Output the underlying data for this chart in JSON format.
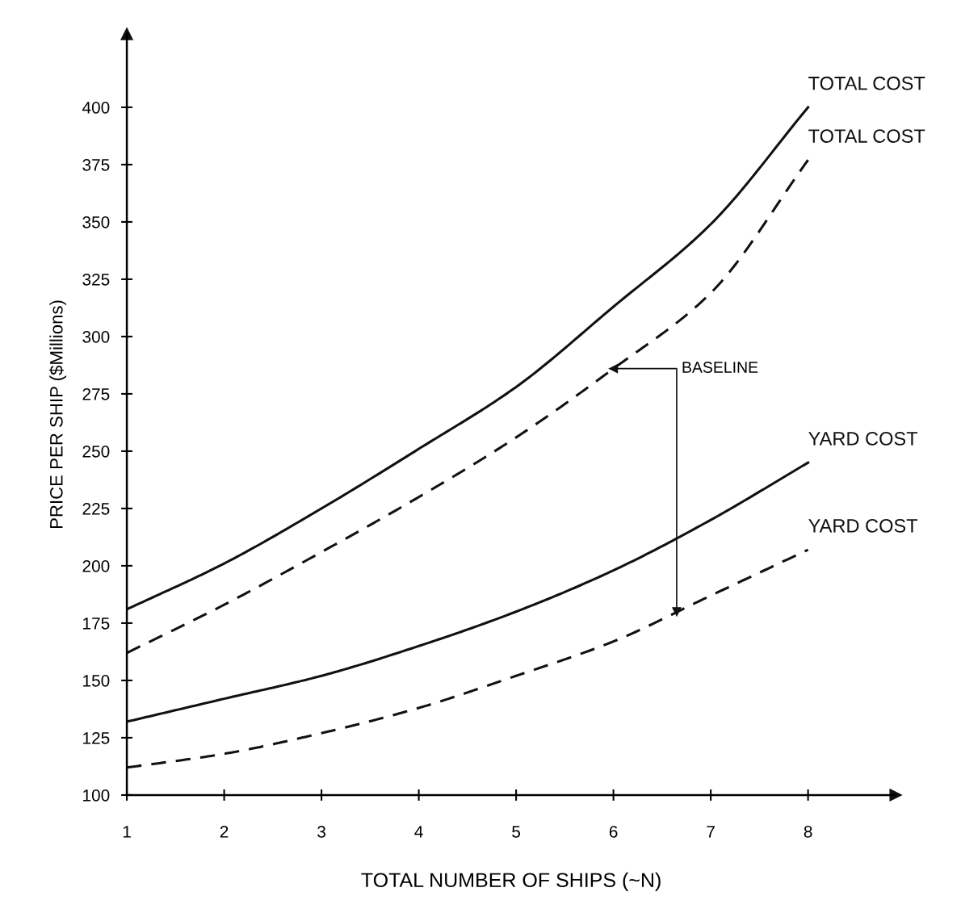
{
  "chart_data": {
    "type": "line",
    "xlabel": "TOTAL NUMBER OF SHIPS (~N)",
    "ylabel": "PRICE PER SHIP ($Millions)",
    "x": [
      1,
      2,
      3,
      4,
      5,
      6,
      7,
      8
    ],
    "series": [
      {
        "name": "TOTAL COST",
        "color": "#111111",
        "line_style": "solid",
        "values": [
          181,
          201,
          225,
          251,
          278,
          313,
          349,
          400
        ]
      },
      {
        "name": "TOTAL COST",
        "color": "#111111",
        "line_style": "dashed",
        "values": [
          162,
          183,
          206,
          230,
          256,
          286,
          319,
          377
        ]
      },
      {
        "name": "YARD COST",
        "color": "#111111",
        "line_style": "solid",
        "values": [
          132,
          142,
          152,
          165,
          180,
          198,
          220,
          245
        ]
      },
      {
        "name": "YARD COST",
        "color": "#111111",
        "line_style": "dashed",
        "values": [
          112,
          118,
          127,
          138,
          152,
          167,
          187,
          207
        ]
      }
    ],
    "annotations": [
      "BASELINE"
    ],
    "xlim": [
      1,
      8.9
    ],
    "ylim": [
      100,
      432
    ],
    "xticks": [
      1,
      2,
      3,
      4,
      5,
      6,
      7,
      8
    ],
    "yticks": [
      100,
      125,
      150,
      175,
      200,
      225,
      250,
      275,
      300,
      325,
      350,
      375,
      400
    ],
    "grid": false,
    "legend": false,
    "marker": "none"
  }
}
